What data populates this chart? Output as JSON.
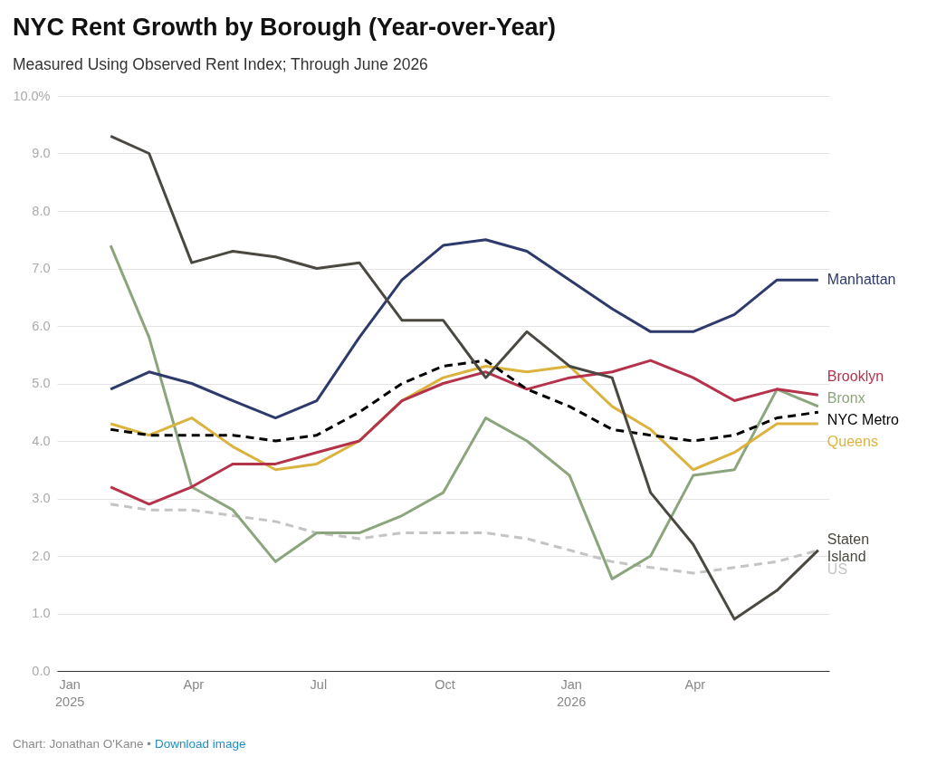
{
  "chart_data": {
    "type": "line",
    "title": "NYC Rent Growth by Borough (Year-over-Year)",
    "subtitle": "Measured Using Observed Rent Index; Through June 2026",
    "annotations": [
      "Chart: Jonathan O'Kane •",
      "Download image"
    ],
    "x": [
      "2025-01-31",
      "2025-02-28",
      "2025-03-31",
      "2025-04-30",
      "2025-05-31",
      "2025-06-30",
      "2025-07-31",
      "2025-08-31",
      "2025-09-30",
      "2025-10-31",
      "2025-11-30",
      "2025-12-31",
      "2026-01-31",
      "2026-02-28",
      "2026-03-31",
      "2026-04-30",
      "2026-05-31",
      "2026-06-30"
    ],
    "series": [
      {
        "name": "US",
        "color": "#c4c4c4",
        "line_style": "dashed",
        "values": [
          2.9,
          2.8,
          2.8,
          2.7,
          2.6,
          2.4,
          2.3,
          2.4,
          2.4,
          2.4,
          2.3,
          2.1,
          1.9,
          1.8,
          1.7,
          1.8,
          1.9,
          2.1
        ]
      },
      {
        "name": "Bronx",
        "color": "#8ba57c",
        "line_style": "solid",
        "values": [
          7.4,
          5.8,
          3.2,
          2.8,
          1.9,
          2.4,
          2.4,
          2.7,
          3.1,
          4.4,
          4.0,
          3.4,
          1.6,
          2.0,
          3.4,
          3.5,
          4.9,
          4.6
        ]
      },
      {
        "name": "Queens",
        "color": "#dbb33e",
        "line_style": "solid",
        "values": [
          4.3,
          4.1,
          4.4,
          3.9,
          3.5,
          3.6,
          4.0,
          4.7,
          5.1,
          5.3,
          5.2,
          5.3,
          4.6,
          4.2,
          3.5,
          3.8,
          4.3,
          4.3
        ]
      },
      {
        "name": "Brooklyn",
        "color": "#b5324b",
        "line_style": "solid",
        "values": [
          3.2,
          2.9,
          3.2,
          3.6,
          3.6,
          3.8,
          4.0,
          4.7,
          5.0,
          5.2,
          4.9,
          5.1,
          5.2,
          5.4,
          5.1,
          4.7,
          4.9,
          4.8
        ]
      },
      {
        "name": "NYC Metro",
        "color": "#000000",
        "line_style": "dashed",
        "values": [
          4.2,
          4.1,
          4.1,
          4.1,
          4.0,
          4.1,
          4.5,
          5.0,
          5.3,
          5.4,
          4.9,
          4.6,
          4.2,
          4.1,
          4.0,
          4.1,
          4.4,
          4.5
        ]
      },
      {
        "name": "Manhattan",
        "color": "#2d3a6b",
        "line_style": "solid",
        "values": [
          4.9,
          5.2,
          5.0,
          4.7,
          4.4,
          4.7,
          5.8,
          6.8,
          7.4,
          7.5,
          7.3,
          6.8,
          6.3,
          5.9,
          5.9,
          6.2,
          6.8,
          6.8
        ]
      },
      {
        "name": "Staten Island",
        "color": "#4a4840",
        "line_style": "solid",
        "values": [
          9.3,
          9.0,
          7.1,
          7.3,
          7.2,
          7.0,
          7.1,
          6.1,
          6.1,
          5.1,
          5.9,
          5.3,
          5.1,
          3.1,
          2.2,
          0.9,
          1.4,
          2.1
        ]
      }
    ],
    "xlim": [
      "2024-12-23",
      "2026-07-08"
    ],
    "xticks": [
      {
        "value": "2025-01-01",
        "label": "Jan 2025"
      },
      {
        "value": "2025-04-01",
        "label": "Apr"
      },
      {
        "value": "2025-07-01",
        "label": "Jul"
      },
      {
        "value": "2025-10-01",
        "label": "Oct"
      },
      {
        "value": "2026-01-01",
        "label": "Jan 2026"
      },
      {
        "value": "2026-04-01",
        "label": "Apr"
      }
    ],
    "ylim": [
      0,
      10
    ],
    "yticks": [
      {
        "value": 0,
        "label": "0.0"
      },
      {
        "value": 1,
        "label": "1.0"
      },
      {
        "value": 2,
        "label": "2.0"
      },
      {
        "value": 3,
        "label": "3.0"
      },
      {
        "value": 4,
        "label": "4.0"
      },
      {
        "value": 5,
        "label": "5.0"
      },
      {
        "value": 6,
        "label": "6.0"
      },
      {
        "value": 7,
        "label": "7.0"
      },
      {
        "value": 8,
        "label": "8.0"
      },
      {
        "value": 9,
        "label": "9.0"
      },
      {
        "value": 10,
        "label": "10.0%"
      }
    ],
    "grid": "y"
  }
}
